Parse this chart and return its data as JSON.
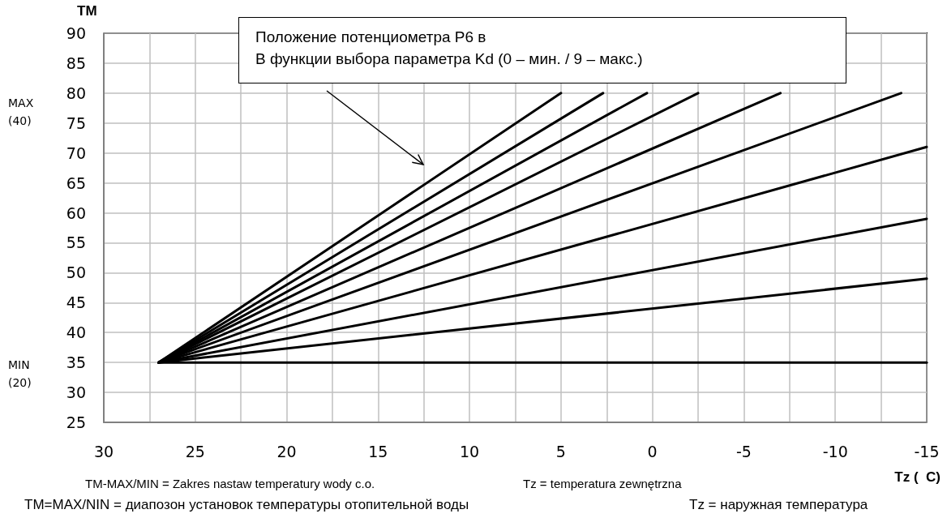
{
  "chart_data": {
    "type": "line",
    "ylabel": "TM",
    "xlabel": "Tz (  C)",
    "xlim": [
      30,
      -15
    ],
    "xticks": [
      30,
      {
        "value": 27.5,
        "label": null
      },
      25,
      {
        "value": 22.5,
        "label": null
      },
      20,
      {
        "value": 17.5,
        "label": null
      },
      15,
      {
        "value": 12.5,
        "label": null
      },
      10,
      {
        "value": 7.5,
        "label": null
      },
      5,
      {
        "value": 2.5,
        "label": null
      },
      0,
      {
        "value": -2.5,
        "label": null
      },
      -5,
      {
        "value": -7.5,
        "label": null
      },
      -10,
      {
        "value": -12.5,
        "label": null
      },
      -15
    ],
    "ylim": [
      25,
      90
    ],
    "yticks": [
      25,
      30,
      35,
      40,
      45,
      50,
      55,
      60,
      65,
      70,
      75,
      80,
      85,
      90
    ],
    "grid": true,
    "marker": "none",
    "line_style": "solid",
    "series": [
      {
        "color": "#000000",
        "x": [
          27,
          -15
        ],
        "values": [
          35,
          35
        ]
      },
      {
        "color": "#000000",
        "x": [
          27,
          -15
        ],
        "values": [
          35,
          49
        ]
      },
      {
        "color": "#000000",
        "x": [
          27,
          -15
        ],
        "values": [
          35,
          59
        ]
      },
      {
        "color": "#000000",
        "x": [
          27,
          -15
        ],
        "values": [
          35,
          71
        ]
      },
      {
        "color": "#000000",
        "x": [
          27,
          -13.6
        ],
        "values": [
          35,
          80
        ]
      },
      {
        "color": "#000000",
        "x": [
          27,
          -7
        ],
        "values": [
          35,
          80
        ]
      },
      {
        "color": "#000000",
        "x": [
          27,
          -2.5
        ],
        "values": [
          35,
          80
        ]
      },
      {
        "color": "#000000",
        "x": [
          27,
          0.3
        ],
        "values": [
          35,
          80
        ]
      },
      {
        "color": "#000000",
        "x": [
          27,
          2.7
        ],
        "values": [
          35,
          80
        ]
      },
      {
        "color": "#000000",
        "x": [
          27,
          5
        ],
        "values": [
          35,
          80
        ]
      }
    ],
    "annotations": [
      "Положение потенциометра P6 в\nВ функции выбора параметра Kd (0 – мин. / 9 – макс.)",
      "MAX\n(40)",
      "MIN\n(20)",
      "TM-MAX/MIN = Zakres nastaw temperatury wody c.o.",
      "Tz = temperatura zewnętrzna",
      "TM=MAX/NIN = диапозон установок температуры отопительной воды",
      "Tz = наружная температура"
    ]
  }
}
